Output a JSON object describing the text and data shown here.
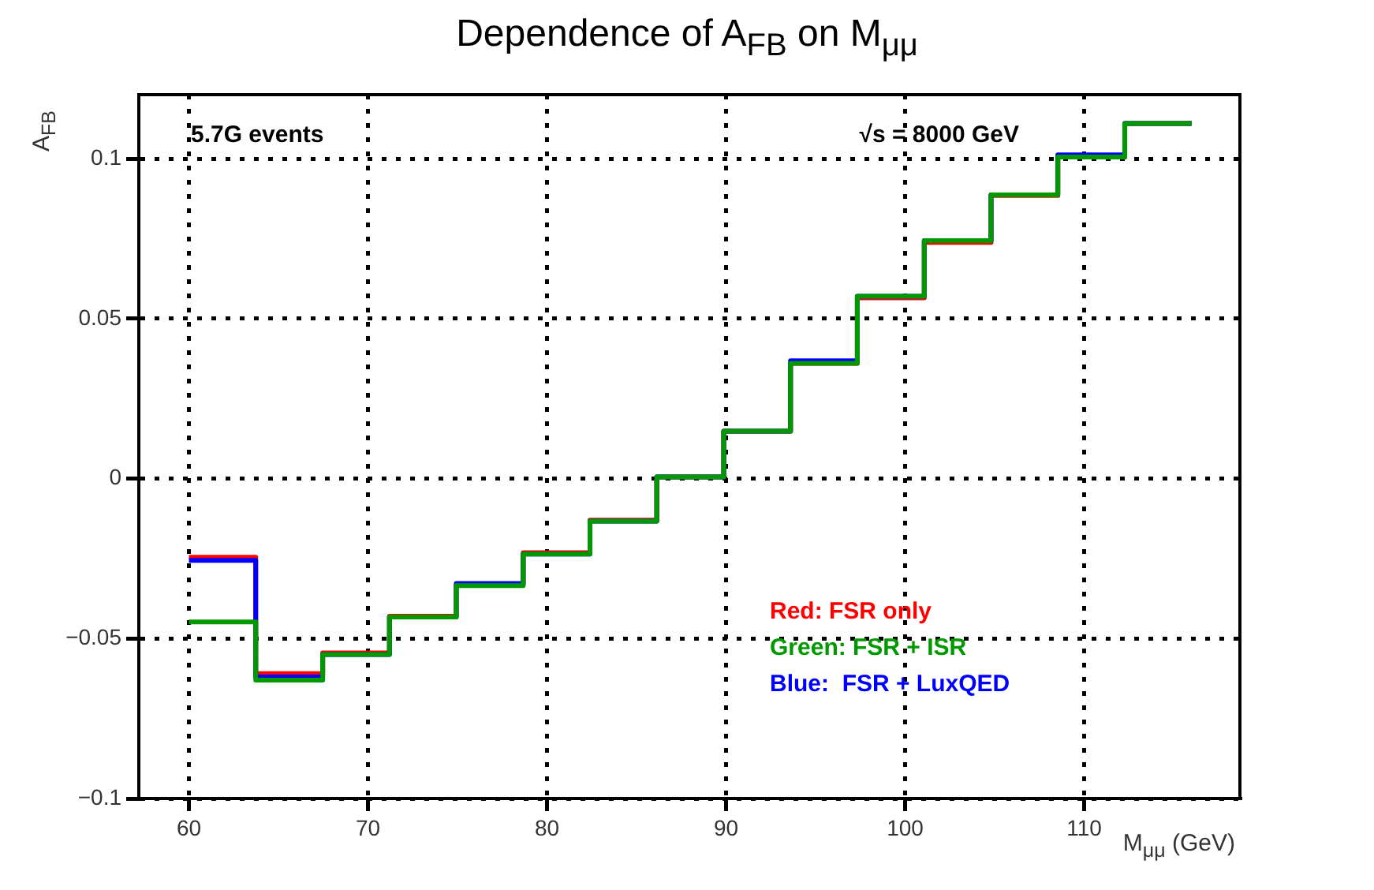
{
  "chart_data": {
    "type": "histogram",
    "title": "Dependence of A$_{FB}$ on M$_{μμ}$",
    "xlabel": "M$_{μμ}$ (GeV)",
    "ylabel": "A$_{FB}$",
    "bins": [
      60,
      63.73,
      67.47,
      71.2,
      74.93,
      78.67,
      82.4,
      86.13,
      89.87,
      93.6,
      97.33,
      101.07,
      104.8,
      108.53,
      112.27,
      116
    ],
    "series": [
      {
        "name": "Red: FSR only",
        "color": "#ff0000",
        "values": [
          -0.0246,
          -0.061,
          -0.0545,
          -0.043,
          -0.0332,
          -0.0232,
          -0.013,
          0.0005,
          0.0148,
          0.036,
          0.0565,
          0.0738,
          0.0885,
          0.1005,
          0.111
        ]
      },
      {
        "name": "Blue:  FSR + LuxQED",
        "color": "#0000ff",
        "values": [
          -0.0256,
          -0.062,
          -0.055,
          -0.0433,
          -0.0328,
          -0.0236,
          -0.0133,
          0.0005,
          0.0148,
          0.0368,
          0.057,
          0.0744,
          0.0887,
          0.1012,
          0.111
        ]
      },
      {
        "name": "Green: FSR + ISR",
        "color": "#009900",
        "values": [
          -0.0448,
          -0.063,
          -0.055,
          -0.0433,
          -0.0335,
          -0.0236,
          -0.0133,
          0.0005,
          0.0148,
          0.036,
          0.057,
          0.0744,
          0.0887,
          0.1005,
          0.111
        ]
      }
    ],
    "xlim": [
      57.2,
      118.7
    ],
    "xticks": [
      60,
      70,
      80,
      90,
      100,
      110
    ],
    "ylim": [
      -0.1,
      0.12
    ],
    "yticks": [
      {
        "value": -0.1,
        "label": "−0.1"
      },
      {
        "value": -0.05,
        "label": "−0.05"
      },
      0,
      0.05,
      0.1
    ],
    "grid": true,
    "legend": "bottom right",
    "line_style": "solid",
    "annotations": [
      "5.7G events",
      "√s = 8000 GeV"
    ]
  }
}
